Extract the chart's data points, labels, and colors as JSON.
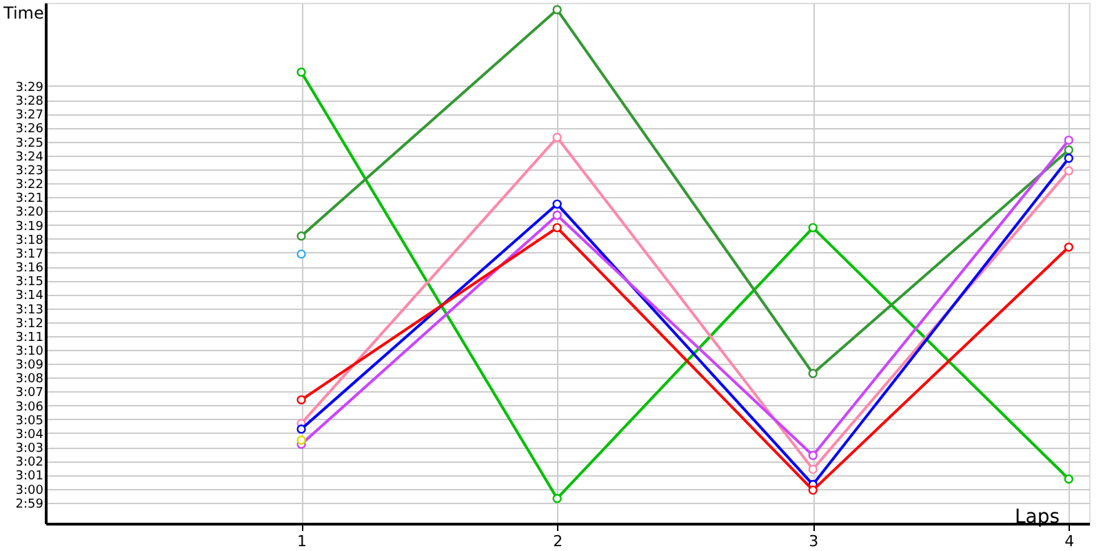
{
  "chart_data": {
    "type": "line",
    "xlabel": "Laps",
    "ylabel": "Time",
    "x": [
      1,
      2,
      3,
      4
    ],
    "xlim": [
      0,
      4.08
    ],
    "xticks": [
      1,
      2,
      3,
      4
    ],
    "ylim": [
      177.5,
      215
    ],
    "yticks": [
      {
        "value": 179,
        "label": "2:59"
      },
      {
        "value": 180,
        "label": "3:00"
      },
      {
        "value": 181,
        "label": "3:01"
      },
      {
        "value": 182,
        "label": "3:02"
      },
      {
        "value": 183,
        "label": "3:03"
      },
      {
        "value": 184,
        "label": "3:04"
      },
      {
        "value": 185,
        "label": "3:05"
      },
      {
        "value": 186,
        "label": "3:06"
      },
      {
        "value": 187,
        "label": "3:07"
      },
      {
        "value": 188,
        "label": "3:08"
      },
      {
        "value": 189,
        "label": "3:09"
      },
      {
        "value": 190,
        "label": "3:10"
      },
      {
        "value": 191,
        "label": "3:11"
      },
      {
        "value": 192,
        "label": "3:12"
      },
      {
        "value": 193,
        "label": "3:13"
      },
      {
        "value": 194,
        "label": "3:14"
      },
      {
        "value": 195,
        "label": "3:15"
      },
      {
        "value": 196,
        "label": "3:16"
      },
      {
        "value": 197,
        "label": "3:17"
      },
      {
        "value": 198,
        "label": "3:18"
      },
      {
        "value": 199,
        "label": "3:19"
      },
      {
        "value": 200,
        "label": "3:20"
      },
      {
        "value": 201,
        "label": "3:21"
      },
      {
        "value": 202,
        "label": "3:22"
      },
      {
        "value": 203,
        "label": "3:23"
      },
      {
        "value": 204,
        "label": "3:24"
      },
      {
        "value": 205,
        "label": "3:25"
      },
      {
        "value": 206,
        "label": "3:26"
      },
      {
        "value": 207,
        "label": "3:27"
      },
      {
        "value": 208,
        "label": "3:28"
      },
      {
        "value": 209,
        "label": "3:29"
      }
    ],
    "grid": true,
    "marker": "circle",
    "line_style": "solid",
    "series": [
      {
        "color": "#00c000",
        "values": [
          210,
          179.3,
          198.8,
          180.7
        ]
      },
      {
        "color": "#339933",
        "values": [
          198.2,
          214.5,
          188.3,
          204.4
        ]
      },
      {
        "color": "#ff88aa",
        "values": [
          184.7,
          205.3,
          181.4,
          202.9
        ]
      },
      {
        "color": "#0000ff",
        "values": [
          184.3,
          200.5,
          180.3,
          203.8
        ]
      },
      {
        "color": "#cc44ff",
        "values": [
          183.2,
          199.7,
          182.4,
          205.1
        ]
      },
      {
        "color": "#ff0000",
        "values": [
          186.4,
          198.8,
          179.9,
          197.4
        ]
      },
      {
        "type": "scatter",
        "color": "#33aaff",
        "values": [
          196.9,
          null,
          null,
          null
        ]
      },
      {
        "type": "scatter",
        "color": "#dddd00",
        "values": [
          183.5,
          null,
          null,
          null
        ]
      }
    ]
  }
}
